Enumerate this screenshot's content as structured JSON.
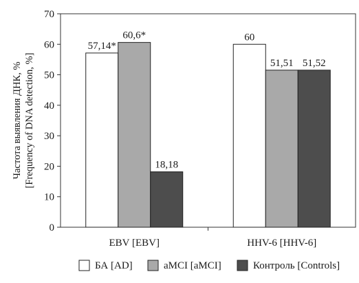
{
  "chart_data": {
    "type": "bar",
    "categories": [
      "EBV [EBV]",
      "HHV-6 [HHV-6]"
    ],
    "series": [
      {
        "name": "БА [AD]",
        "values": [
          57.14,
          60
        ],
        "labels": [
          "57,14*",
          "60"
        ],
        "color": "#ffffff"
      },
      {
        "name": "aMCI [aMCI]",
        "values": [
          60.6,
          51.51
        ],
        "labels": [
          "60,6*",
          "51,51"
        ],
        "color": "#a9a9a9"
      },
      {
        "name": "Контроль [Controls]",
        "values": [
          18.18,
          51.52
        ],
        "labels": [
          "18,18",
          "51,52"
        ],
        "color": "#4d4d4d"
      }
    ],
    "ylabel_lines": [
      "Частота выявления ДНК, %",
      "[Frequency of DNA detection, %]"
    ],
    "ylim": [
      0,
      70
    ],
    "yticks": [
      "0",
      "10",
      "20",
      "30",
      "40",
      "50",
      "60",
      "70"
    ],
    "grid": false,
    "legend_position": "bottom"
  }
}
